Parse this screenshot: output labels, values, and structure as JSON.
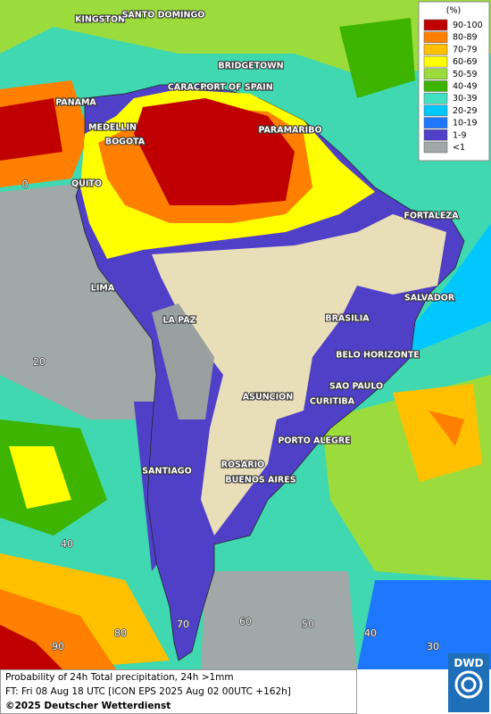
{
  "legend": {
    "title": "(%)",
    "items": [
      {
        "label": "90-100",
        "color": "#c00000"
      },
      {
        "label": "80-89",
        "color": "#ff8000"
      },
      {
        "label": "70-79",
        "color": "#ffc000"
      },
      {
        "label": "60-69",
        "color": "#ffff00"
      },
      {
        "label": "50-59",
        "color": "#9bdc3c"
      },
      {
        "label": "40-49",
        "color": "#3cb400"
      },
      {
        "label": "30-39",
        "color": "#40e0c0"
      },
      {
        "label": "20-29",
        "color": "#00c8ff"
      },
      {
        "label": "10-19",
        "color": "#1e78ff"
      },
      {
        "label": "1-9",
        "color": "#5040c8"
      },
      {
        "label": "<1",
        "color": "#a0a8a8"
      }
    ]
  },
  "cities": [
    "KINGSTON",
    "SANTO DOMINGO",
    "BRIDGETOWN",
    "CARACAS",
    "PORT OF SPAIN",
    "PANAMA",
    "MEDELLIN",
    "BOGOTA",
    "PARAMARIBO",
    "QUITO",
    "FORTALEZA",
    "LIMA",
    "SALVADOR",
    "LA PAZ",
    "BRASILIA",
    "BELO HORIZONTE",
    "SAO PAULO",
    "ASUNCION",
    "CURITIBA",
    "PORTO ALEGRE",
    "SANTIAGO",
    "ROSARIO",
    "BUENOS AIRES"
  ],
  "graticule": {
    "lat_labels": [
      0,
      20,
      40
    ],
    "lon_labels": [
      90,
      80,
      70,
      60,
      50,
      40,
      30
    ]
  },
  "footer": {
    "line1": "Probability of 24h Total precipitation, 24h >1mm",
    "line2": "FT: Fri 08 Aug 18 UTC [ICON EPS 2025 Aug 02 00UTC +162h]",
    "copyright": "©2025 Deutscher Wetterdienst",
    "logo": "DWD"
  }
}
